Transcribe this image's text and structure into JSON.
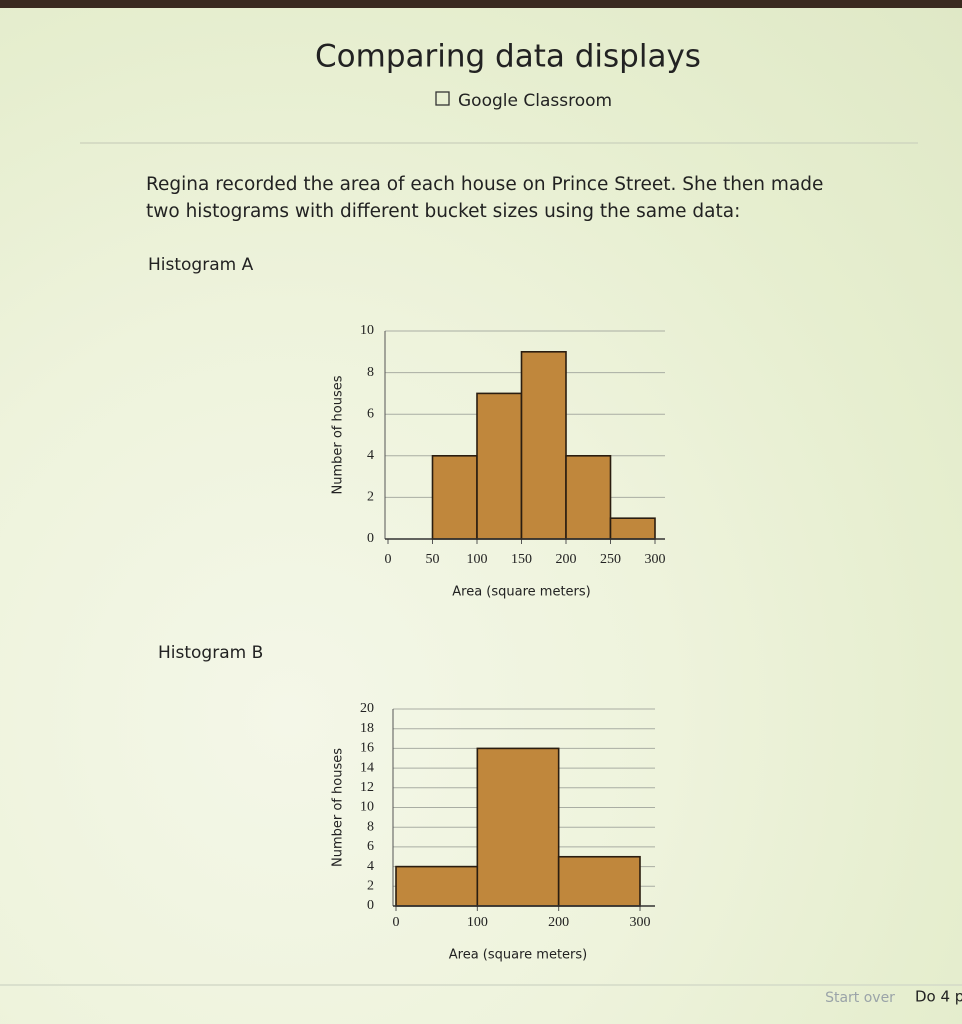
{
  "header": {
    "title": "Comparing data displays",
    "subtitle": "Google Classroom"
  },
  "prompt": [
    "Regina recorded the area of each house on Prince Street. She then made",
    "two histograms with different bucket sizes using the same data:"
  ],
  "chart_data": [
    {
      "type": "histogram",
      "heading": "Histogram A",
      "bins": [
        0,
        50,
        100,
        150,
        200,
        250,
        300
      ],
      "values": [
        0,
        4,
        7,
        9,
        4,
        1
      ],
      "color": "#c0873c",
      "xlim": [
        0,
        300
      ],
      "xticks": [
        0,
        50,
        100,
        150,
        200,
        250,
        300
      ],
      "ylim": [
        0,
        10
      ],
      "yticks": [
        0,
        2,
        4,
        6,
        8,
        10
      ],
      "x_label": "Area (square meters)",
      "y_label": "Number of houses",
      "grid": true
    },
    {
      "type": "histogram",
      "heading": "Histogram B",
      "bins": [
        0,
        100,
        200,
        300
      ],
      "values": [
        4,
        16,
        5
      ],
      "color": "#c0873c",
      "xlim": [
        0,
        300
      ],
      "xticks": [
        0,
        100,
        200,
        300
      ],
      "ylim": [
        0,
        20
      ],
      "yticks": [
        0,
        2,
        4,
        6,
        8,
        10,
        12,
        14,
        16,
        18,
        20
      ],
      "x_label": "Area (square meters)",
      "y_label": "Number of houses",
      "grid": true
    }
  ],
  "footer": {
    "start_over": "Start over",
    "next": "Do 4 p"
  }
}
